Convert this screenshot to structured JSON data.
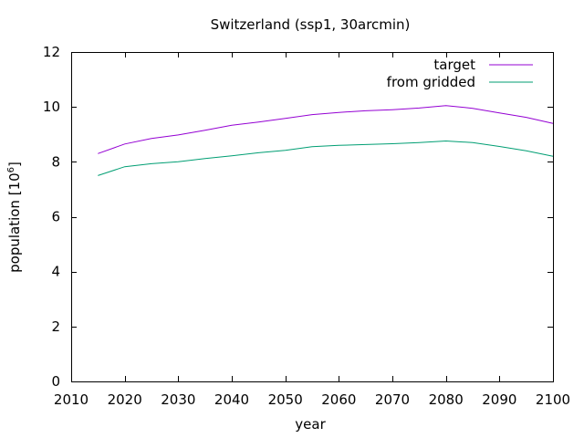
{
  "chart_data": {
    "type": "line",
    "title": "Switzerland (ssp1, 30arcmin)",
    "xlabel": "year",
    "ylabel_base": "population [10",
    "ylabel_exp": "6",
    "ylabel_tail": "]",
    "xlim": [
      2010,
      2100
    ],
    "ylim": [
      0,
      12
    ],
    "xticks": [
      2010,
      2020,
      2030,
      2040,
      2050,
      2060,
      2070,
      2080,
      2090,
      2100
    ],
    "yticks": [
      0,
      2,
      4,
      6,
      8,
      10,
      12
    ],
    "grid": false,
    "legend_position": "top-right",
    "x": [
      2015,
      2020,
      2025,
      2030,
      2035,
      2040,
      2045,
      2050,
      2055,
      2060,
      2065,
      2070,
      2075,
      2080,
      2085,
      2090,
      2095,
      2100
    ],
    "series": [
      {
        "name": "target",
        "color": "#9400d3",
        "values": [
          8.3,
          8.65,
          8.85,
          8.98,
          9.15,
          9.33,
          9.45,
          9.58,
          9.72,
          9.8,
          9.86,
          9.9,
          9.96,
          10.05,
          9.95,
          9.78,
          9.62,
          9.4
        ]
      },
      {
        "name": "from gridded",
        "color": "#009e73",
        "values": [
          7.5,
          7.82,
          7.93,
          8.0,
          8.12,
          8.22,
          8.33,
          8.42,
          8.55,
          8.6,
          8.63,
          8.66,
          8.7,
          8.76,
          8.7,
          8.56,
          8.4,
          8.2
        ]
      }
    ]
  }
}
